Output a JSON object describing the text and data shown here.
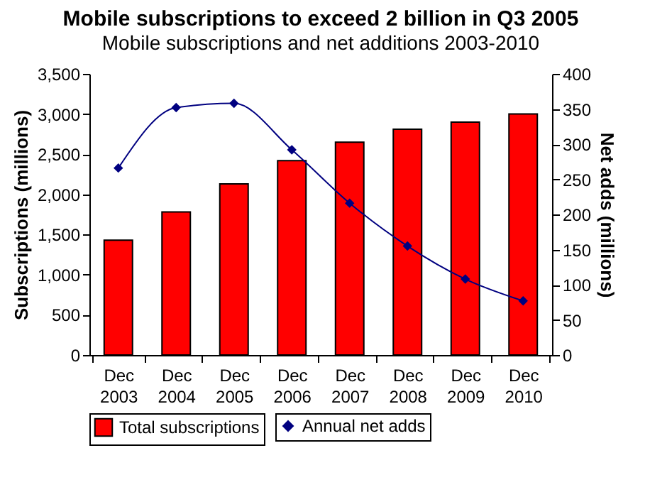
{
  "chart_data": {
    "type": "bar",
    "title": "Mobile subscriptions to exceed 2 billion in Q3 2005",
    "subtitle": "Mobile subscriptions and net additions 2003-2010",
    "ylabel": "Subscriptions (millions)",
    "y2label": "Net adds (millions)",
    "categories": [
      "Dec 2003",
      "Dec 2004",
      "Dec 2005",
      "Dec 2006",
      "Dec 2007",
      "Dec 2008",
      "Dec 2009",
      "Dec 2010"
    ],
    "series": [
      {
        "name": "Total subscriptions",
        "color": "#ff0000",
        "values": [
          1430,
          1780,
          2130,
          2420,
          2650,
          2810,
          2900,
          3000
        ]
      },
      {
        "name": "Annual net adds",
        "type": "line",
        "axis": "y2",
        "color": "#000080",
        "values": [
          266,
          352,
          358,
          292,
          216,
          155,
          108,
          77
        ]
      }
    ],
    "ylim": [
      0,
      3500
    ],
    "yticks": [
      0,
      500,
      {
        "value": 1000,
        "label": "1,000"
      },
      {
        "value": 1500,
        "label": "1,500"
      },
      {
        "value": 2000,
        "label": "2,000"
      },
      {
        "value": 2500,
        "label": "2,500"
      },
      {
        "value": 3000,
        "label": "3,000"
      },
      {
        "value": 3500,
        "label": "3,500"
      }
    ],
    "y2lim": [
      0,
      400
    ],
    "y2ticks": [
      0,
      50,
      100,
      150,
      200,
      250,
      300,
      350,
      400
    ],
    "legend": "bottom",
    "marker": "diamond"
  }
}
